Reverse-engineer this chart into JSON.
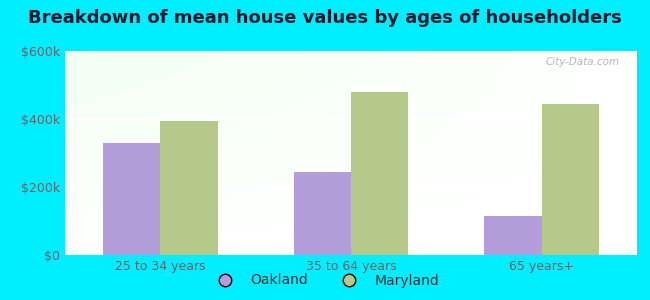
{
  "title": "Breakdown of mean house values by ages of householders",
  "categories": [
    "25 to 34 years",
    "35 to 64 years",
    "65 years+"
  ],
  "oakland_values": [
    330000,
    245000,
    115000
  ],
  "maryland_values": [
    395000,
    480000,
    445000
  ],
  "oakland_color": "#b39ddb",
  "maryland_color": "#b5c98a",
  "ylim": [
    0,
    600000
  ],
  "yticks": [
    0,
    200000,
    400000,
    600000
  ],
  "ytick_labels": [
    "$0",
    "$200k",
    "$400k",
    "$600k"
  ],
  "background_color": "#00eeff",
  "legend_labels": [
    "Oakland",
    "Maryland"
  ],
  "title_fontsize": 13,
  "tick_fontsize": 9,
  "legend_fontsize": 10,
  "bar_width": 0.3,
  "watermark": "City-Data.com"
}
